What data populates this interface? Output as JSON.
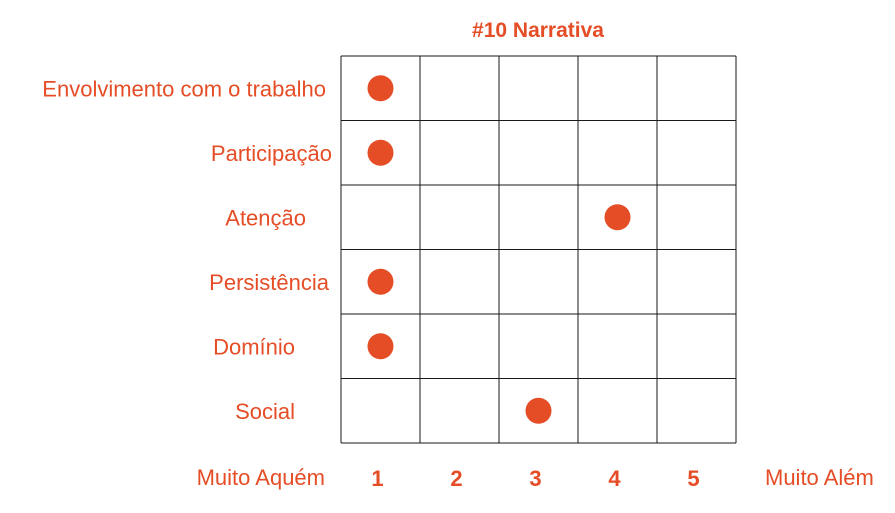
{
  "chart_data": {
    "type": "scatter",
    "title": "#10 Narrativa",
    "rows": [
      "Envolvimento com o trabalho",
      "Participação",
      "Atenção",
      "Persistência",
      "Domínio",
      "Social"
    ],
    "x_ticks": [
      "1",
      "2",
      "3",
      "4",
      "5"
    ],
    "x_min_label": "Muito Aquém",
    "x_max_label": "Muito Além",
    "xlim": [
      1,
      5
    ],
    "points": [
      {
        "row": "Envolvimento com o trabalho",
        "value": 1
      },
      {
        "row": "Participação",
        "value": 1
      },
      {
        "row": "Atenção",
        "value": 4
      },
      {
        "row": "Persistência",
        "value": 1
      },
      {
        "row": "Domínio",
        "value": 1
      },
      {
        "row": "Social",
        "value": 3
      }
    ],
    "grid": true,
    "colors": {
      "accent": "#e54d26",
      "grid": "#1a1a1a"
    }
  }
}
